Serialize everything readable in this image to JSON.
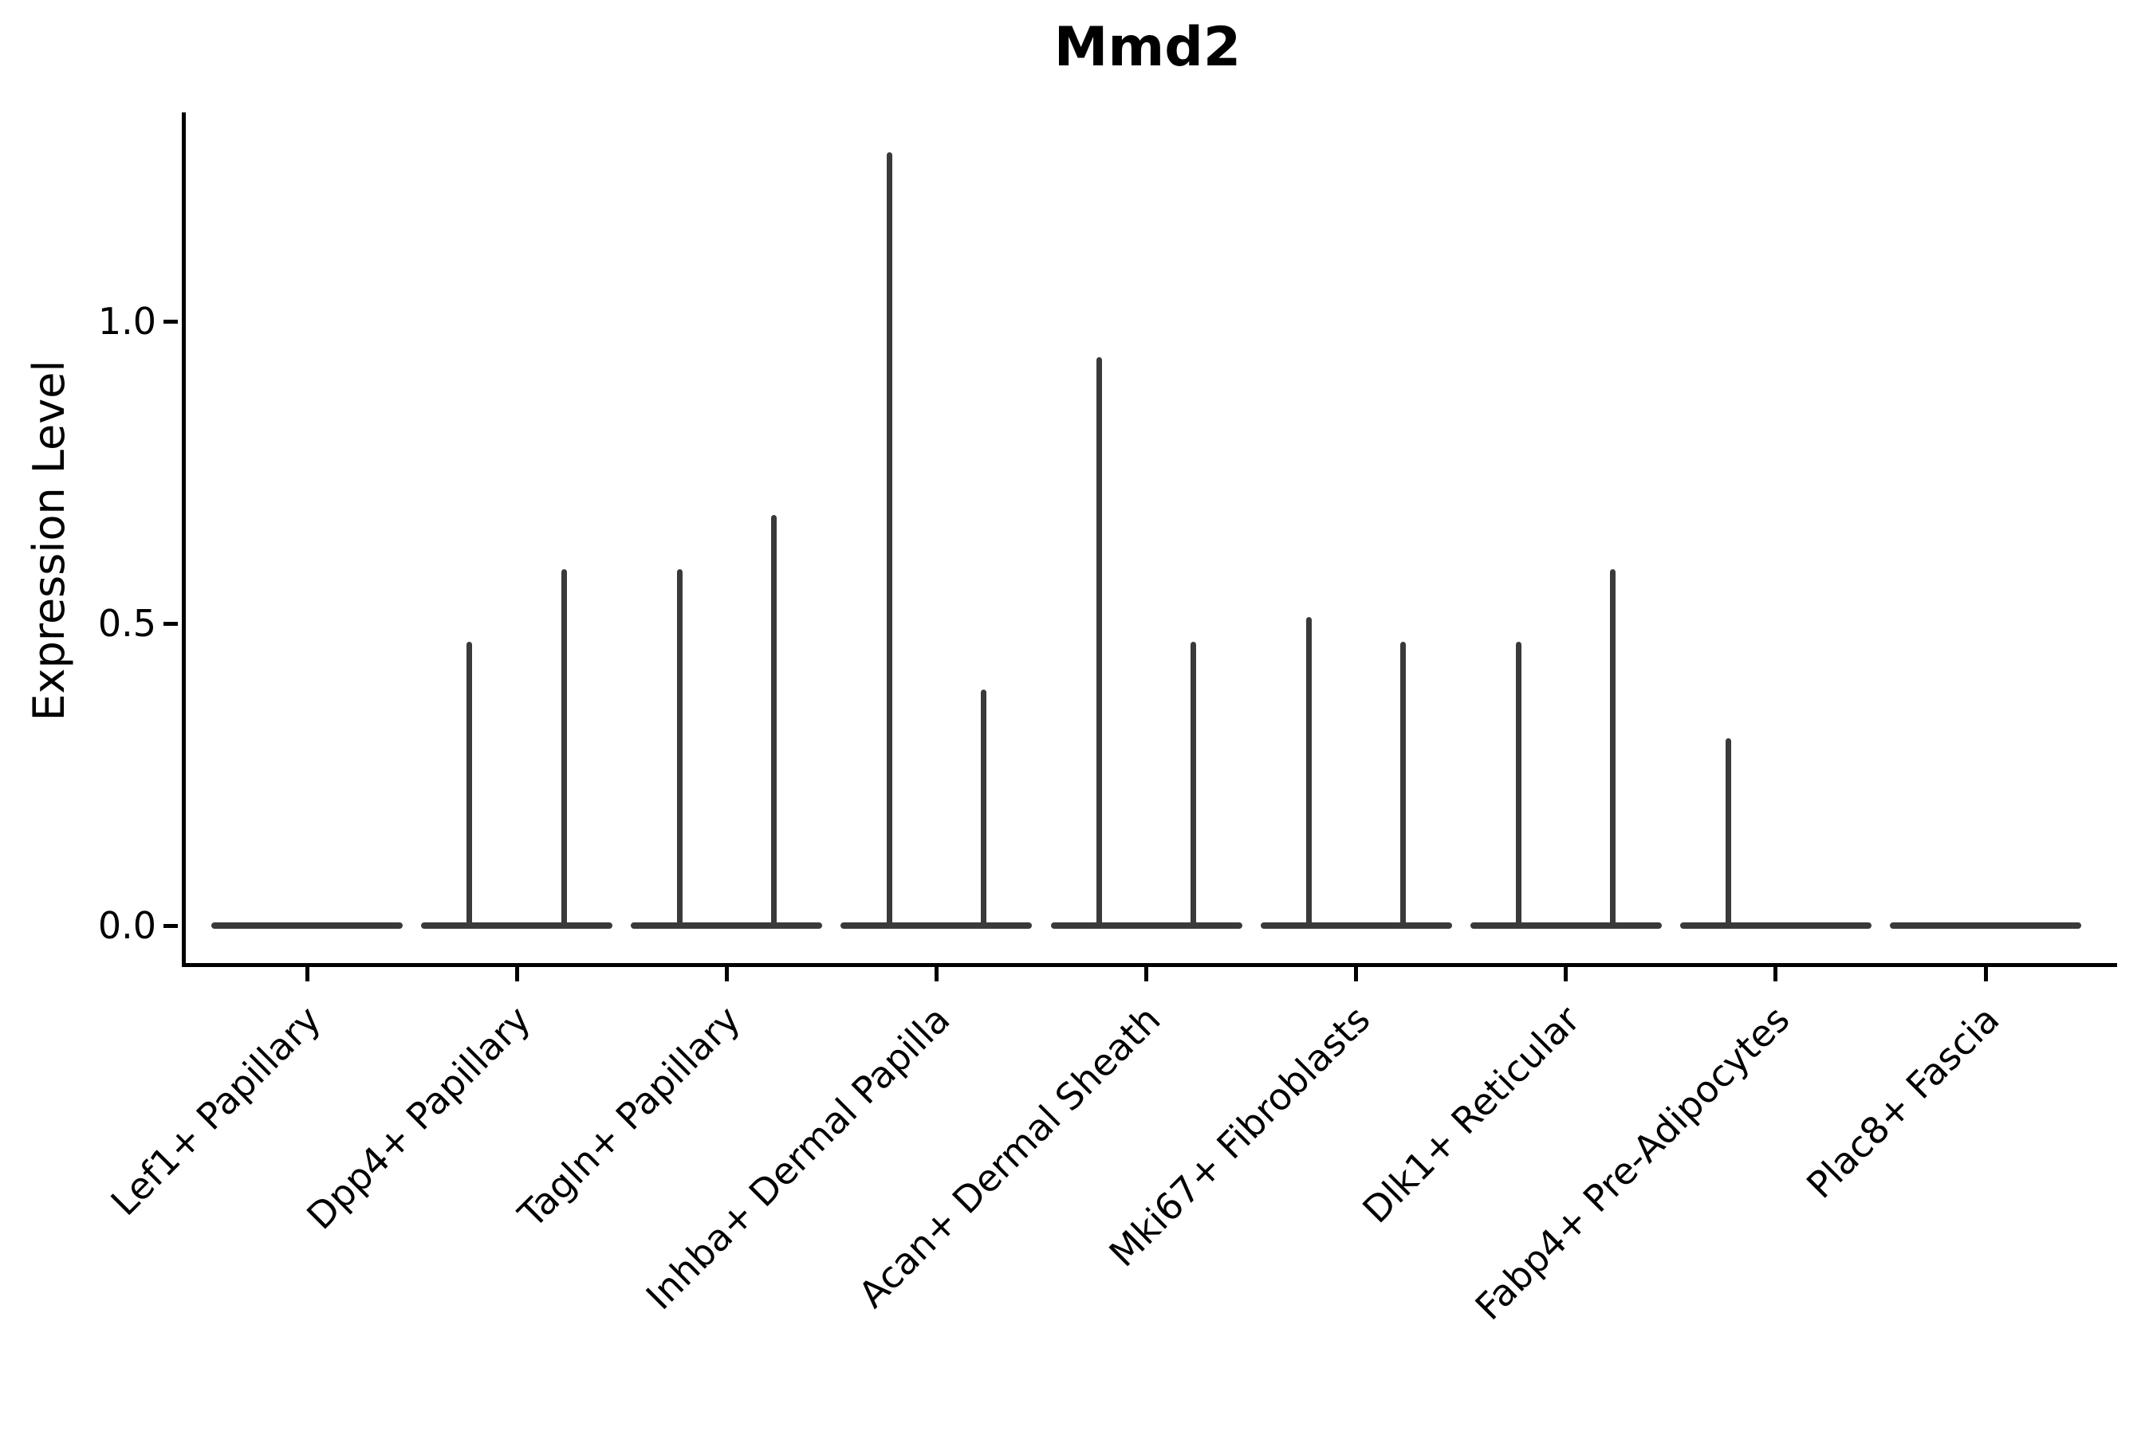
{
  "colors": {
    "background": "#ffffff",
    "axis": "#000000",
    "text": "#000000",
    "violin_stroke": "#3a3a3a"
  },
  "chart_data": {
    "type": "violin",
    "title": "Mmd2",
    "xlabel": "",
    "ylabel": "Expression Level",
    "grid": false,
    "ylim": [
      -0.06,
      1.35
    ],
    "yticks": [
      {
        "label": "0.0",
        "value": 0.0
      },
      {
        "label": "0.5",
        "value": 0.5
      },
      {
        "label": "1.0",
        "value": 1.0
      }
    ],
    "categories": [
      "Lef1+ Papillary",
      "Dpp4+ Papillary",
      "Tagln+ Papillary",
      "Inhba+ Dermal Papilla",
      "Acan+ Dermal Sheath",
      "Mki67+ Fibroblasts",
      "Dlk1+ Reticular",
      "Fabp4+ Pre-Adipocytes",
      "Plac8+ Fascia"
    ],
    "series": [
      {
        "category": "Lef1+ Papillary",
        "base_at_zero": true,
        "spikes": []
      },
      {
        "category": "Dpp4+ Papillary",
        "base_at_zero": true,
        "spikes": [
          {
            "side": "left",
            "value": 0.47
          },
          {
            "side": "right",
            "value": 0.59
          }
        ]
      },
      {
        "category": "Tagln+ Papillary",
        "base_at_zero": true,
        "spikes": [
          {
            "side": "left",
            "value": 0.59
          },
          {
            "side": "right",
            "value": 0.68
          }
        ]
      },
      {
        "category": "Inhba+ Dermal Papilla",
        "base_at_zero": true,
        "spikes": [
          {
            "side": "left",
            "value": 1.28
          },
          {
            "side": "right",
            "value": 0.39
          }
        ]
      },
      {
        "category": "Acan+ Dermal Sheath",
        "base_at_zero": true,
        "spikes": [
          {
            "side": "left",
            "value": 0.94
          },
          {
            "side": "right",
            "value": 0.47
          }
        ]
      },
      {
        "category": "Mki67+ Fibroblasts",
        "base_at_zero": true,
        "spikes": [
          {
            "side": "left",
            "value": 0.51
          },
          {
            "side": "right",
            "value": 0.47
          }
        ]
      },
      {
        "category": "Dlk1+ Reticular",
        "base_at_zero": true,
        "spikes": [
          {
            "side": "left",
            "value": 0.47
          },
          {
            "side": "right",
            "value": 0.59
          }
        ]
      },
      {
        "category": "Fabp4+ Pre-Adipocytes",
        "base_at_zero": true,
        "spikes": [
          {
            "side": "left",
            "value": 0.31
          }
        ]
      },
      {
        "category": "Plac8+ Fascia",
        "base_at_zero": true,
        "spikes": []
      }
    ]
  }
}
